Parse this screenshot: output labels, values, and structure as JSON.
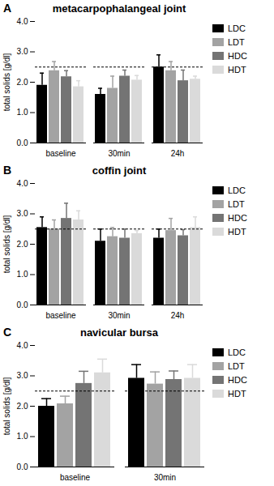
{
  "chart_data": [
    {
      "type": "bar",
      "annotations": [
        "A"
      ],
      "title": "metacarpophalangeal joint",
      "y_label": "total solids [g/dl]",
      "categories": [
        "baseline",
        "30min",
        "24h"
      ],
      "ylim": [
        0,
        4
      ],
      "yticks": [
        0,
        1,
        2,
        3,
        4
      ],
      "legend": "right",
      "reference_line": {
        "value": 2.5,
        "line_style": "dashed"
      },
      "series": [
        {
          "name": "LDC",
          "color": "#000000",
          "values": [
            1.9,
            1.6,
            2.5
          ],
          "errors": [
            0.4,
            0.2,
            0.4
          ]
        },
        {
          "name": "LDT",
          "color": "#a3a3a3",
          "values": [
            2.38,
            1.8,
            2.38
          ],
          "errors": [
            0.3,
            0.4,
            0.3
          ]
        },
        {
          "name": "HDC",
          "color": "#747474",
          "values": [
            2.18,
            2.2,
            2.05
          ],
          "errors": [
            0.2,
            0.2,
            0.35
          ]
        },
        {
          "name": "HDT",
          "color": "#dadada",
          "values": [
            1.85,
            2.07,
            2.1
          ],
          "errors": [
            0.2,
            0.15,
            0.1
          ]
        }
      ]
    },
    {
      "type": "bar",
      "annotations": [
        "B"
      ],
      "title": "coffin joint",
      "y_label": "total solids [g/dl]",
      "categories": [
        "baseline",
        "30min",
        "24h"
      ],
      "ylim": [
        0,
        4
      ],
      "yticks": [
        0,
        1,
        2,
        3,
        4
      ],
      "legend": "right",
      "reference_line": {
        "value": 2.5,
        "line_style": "dashed"
      },
      "series": [
        {
          "name": "LDC",
          "color": "#000000",
          "values": [
            2.55,
            2.1,
            2.2
          ],
          "errors": [
            0.35,
            0.4,
            0.3
          ]
        },
        {
          "name": "LDT",
          "color": "#a3a3a3",
          "values": [
            2.5,
            2.25,
            2.45
          ],
          "errors": [
            0.3,
            0.3,
            0.4
          ]
        },
        {
          "name": "HDC",
          "color": "#747474",
          "values": [
            2.85,
            2.2,
            2.28
          ],
          "errors": [
            0.5,
            0.3,
            0.2
          ]
        },
        {
          "name": "HDT",
          "color": "#dadada",
          "values": [
            2.8,
            2.35,
            2.55
          ],
          "errors": [
            0.3,
            0.1,
            0.35
          ]
        }
      ]
    },
    {
      "type": "bar",
      "annotations": [
        "C"
      ],
      "title": "navicular bursa",
      "y_label": "total solids [g/dl]",
      "categories": [
        "baseline",
        "30min"
      ],
      "ylim": [
        0,
        4
      ],
      "yticks": [
        0,
        1,
        2,
        3,
        4
      ],
      "legend": "right",
      "reference_line": {
        "value": 2.5,
        "line_style": "dashed"
      },
      "series": [
        {
          "name": "LDC",
          "color": "#000000",
          "values": [
            2.0,
            2.92
          ],
          "errors": [
            0.25,
            0.45
          ]
        },
        {
          "name": "LDT",
          "color": "#a3a3a3",
          "values": [
            2.08,
            2.73
          ],
          "errors": [
            0.25,
            0.4
          ]
        },
        {
          "name": "HDC",
          "color": "#747474",
          "values": [
            2.75,
            2.88
          ],
          "errors": [
            0.4,
            0.28
          ]
        },
        {
          "name": "HDT",
          "color": "#dadada",
          "values": [
            3.1,
            2.92
          ],
          "errors": [
            0.45,
            0.45
          ]
        }
      ]
    }
  ]
}
